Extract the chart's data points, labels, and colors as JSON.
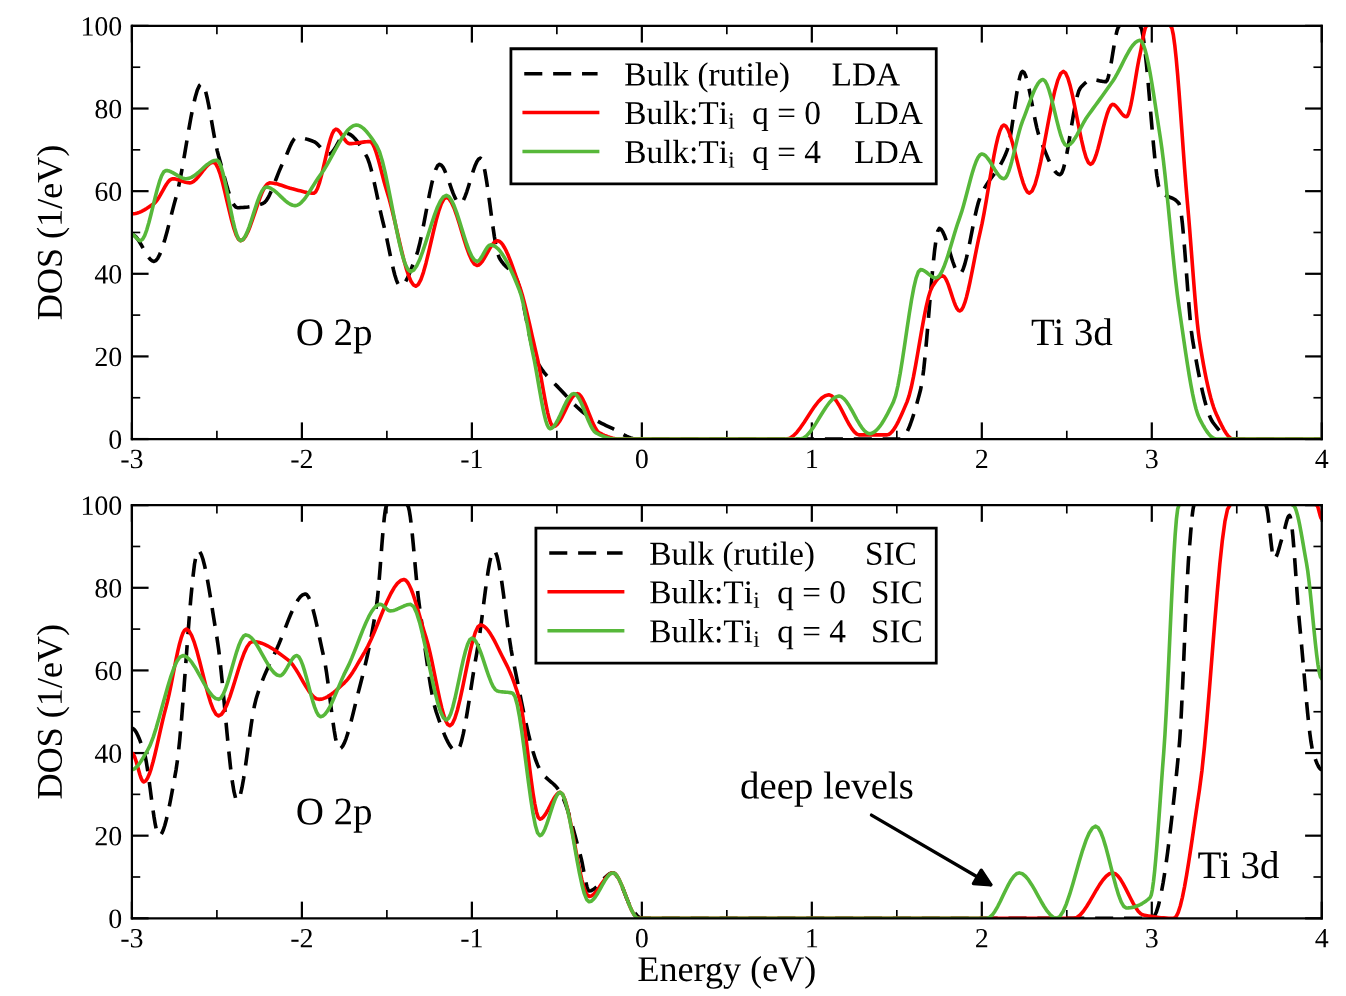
{
  "chart_data": [
    {
      "type": "line",
      "ylabel": "DOS (1/eV)",
      "xlim": [
        -3,
        4
      ],
      "ylim": [
        0,
        100
      ],
      "xticks": [
        -3,
        {
          "value": -2.5,
          "label": null
        },
        -2,
        {
          "value": -1.5,
          "label": null
        },
        -1,
        {
          "value": -0.5,
          "label": null
        },
        0,
        {
          "value": 0.5,
          "label": null
        },
        1,
        {
          "value": 1.5,
          "label": null
        },
        2,
        {
          "value": 2.5,
          "label": null
        },
        3,
        {
          "value": 3.5,
          "label": null
        },
        4
      ],
      "yticks": [
        0,
        {
          "value": 10,
          "label": null
        },
        20,
        {
          "value": 30,
          "label": null
        },
        40,
        {
          "value": 50,
          "label": null
        },
        60,
        {
          "value": 70,
          "label": null
        },
        80,
        {
          "value": 90,
          "label": null
        },
        100
      ],
      "grid": false,
      "legend": "top",
      "marker": "none",
      "annotations": [
        "O 2p",
        "Ti 3d"
      ],
      "series": [
        {
          "name": "Bulk (rutile)     LDA",
          "color": "#000000",
          "line_style": "dashed",
          "x": [
            -3,
            -2.87,
            -2.74,
            -2.59,
            -2.49,
            -2.38,
            -2.23,
            -2.11,
            -2.03,
            -1.93,
            -1.84,
            -1.74,
            -1.62,
            -1.52,
            -1.42,
            -1.33,
            -1.19,
            -1.07,
            -0.95,
            -0.84,
            -0.74,
            -0.62,
            -0.48,
            -0.33,
            -0.17,
            -0.03,
            1.52,
            1.64,
            1.75,
            1.87,
            1.99,
            2.15,
            2.24,
            2.34,
            2.46,
            2.58,
            2.65,
            2.73,
            2.81,
            2.87,
            2.93,
            3.05,
            3.16,
            3.24,
            3.36,
            3.48,
            4
          ],
          "values": [
            49.5,
            43,
            58.6,
            86,
            68.5,
            56,
            57,
            67,
            73,
            72,
            69,
            74,
            68.5,
            52,
            37,
            44,
            66.5,
            57,
            68,
            44,
            39,
            19,
            12,
            6,
            2.5,
            0,
            0,
            12,
            51,
            40,
            58.5,
            70,
            89,
            73,
            64,
            85,
            87,
            86.5,
            100,
            null,
            100,
            60,
            57,
            24,
            4,
            0,
            0
          ]
        },
        {
          "name": "Bulk:Ti$_{i}$  q = 0    LDA",
          "color": "#ff0000",
          "line_style": "solid",
          "x": [
            -3,
            -2.87,
            -2.76,
            -2.66,
            -2.52,
            -2.36,
            -2.19,
            -2.05,
            -1.93,
            -1.8,
            -1.72,
            -1.6,
            -1.5,
            -1.33,
            -1.15,
            -0.97,
            -0.85,
            -0.72,
            -0.62,
            -0.52,
            -0.38,
            -0.25,
            -0.13,
            0.85,
            1.1,
            1.28,
            1.44,
            1.56,
            1.71,
            1.77,
            1.87,
            1.99,
            2.13,
            2.28,
            2.48,
            2.64,
            2.77,
            2.85,
            2.93,
            2.97,
            3.04,
            3.11,
            3.21,
            3.28,
            3.38,
            3.48,
            4
          ],
          "values": [
            54.5,
            57,
            63,
            62,
            67,
            48,
            62,
            60.5,
            59.5,
            75,
            71.5,
            72,
            60,
            37,
            58.5,
            42,
            48,
            37,
            20.5,
            3,
            11,
            1.5,
            0,
            0,
            10.7,
            1,
            1,
            9,
            37,
            39.5,
            31,
            50,
            76,
            59.5,
            89,
            66.5,
            81,
            78,
            93,
            100,
            null,
            100,
            57,
            24,
            6,
            0,
            0
          ]
        },
        {
          "name": "Bulk:Ti$_{i}$  q = 4    LDA",
          "color": "#57b83a",
          "line_style": "solid",
          "x": [
            -3,
            -2.95,
            -2.8,
            -2.68,
            -2.5,
            -2.36,
            -2.21,
            -2.04,
            -1.89,
            -1.68,
            -1.56,
            -1.36,
            -1.15,
            -0.97,
            -0.89,
            -0.72,
            -0.64,
            -0.54,
            -0.4,
            -0.27,
            -0.15,
            0.93,
            1.16,
            1.34,
            1.48,
            1.64,
            1.73,
            1.87,
            2.0,
            2.13,
            2.24,
            2.36,
            2.5,
            2.62,
            2.77,
            2.93,
            3.05,
            3.16,
            3.28,
            3.38,
            4
          ],
          "values": [
            49.5,
            48,
            65,
            63,
            67.5,
            48,
            61,
            56.5,
            64,
            76,
            71,
            40.5,
            59,
            43,
            47,
            36,
            20.5,
            2.5,
            11,
            1.5,
            0,
            0,
            10.4,
            1.3,
            9,
            41,
            39,
            53.6,
            69,
            63,
            77,
            87,
            71,
            78,
            86.6,
            96.5,
            73,
            32,
            5,
            0,
            0
          ]
        }
      ]
    },
    {
      "type": "line",
      "xlabel": "Energy (eV)",
      "ylabel": "DOS (1/eV)",
      "xlim": [
        -3,
        4
      ],
      "ylim": [
        0,
        100
      ],
      "xticks": [
        -3,
        {
          "value": -2.5,
          "label": null
        },
        -2,
        {
          "value": -1.5,
          "label": null
        },
        -1,
        {
          "value": -0.5,
          "label": null
        },
        0,
        {
          "value": 0.5,
          "label": null
        },
        1,
        {
          "value": 1.5,
          "label": null
        },
        2,
        {
          "value": 2.5,
          "label": null
        },
        3,
        {
          "value": 3.5,
          "label": null
        },
        4
      ],
      "yticks": [
        0,
        {
          "value": 10,
          "label": null
        },
        20,
        {
          "value": 30,
          "label": null
        },
        40,
        {
          "value": 50,
          "label": null
        },
        60,
        {
          "value": 70,
          "label": null
        },
        80,
        {
          "value": 90,
          "label": null
        },
        100
      ],
      "grid": false,
      "legend": "top",
      "marker": "none",
      "annotations": [
        "O 2p",
        "Ti 3d",
        {
          "text": "deep levels",
          "x": 2.1,
          "y": 7
        }
      ],
      "series": [
        {
          "name": "Bulk (rutile)      SIC",
          "color": "#000000",
          "line_style": "dashed",
          "x": [
            -3,
            -2.93,
            -2.84,
            -2.74,
            -2.61,
            -2.5,
            -2.38,
            -2.27,
            -2.15,
            -1.98,
            -1.87,
            -1.78,
            -1.66,
            -1.56,
            -1.5,
            -1.44,
            -1.38,
            -1.31,
            -1.21,
            -1.09,
            -0.97,
            -0.87,
            -0.76,
            -0.6,
            -0.48,
            -0.36,
            -0.31,
            -0.17,
            -0.05,
            0.0,
            3.0,
            3.16,
            3.22,
            3.25,
            3.45,
            3.67,
            3.72,
            3.77,
            3.81,
            3.87,
            3.95,
            4.0
          ],
          "values": [
            46,
            40.5,
            20,
            36,
            89,
            68,
            28.5,
            53,
            65,
            78.5,
            63,
            41,
            56,
            76,
            100,
            null,
            100,
            76,
            50,
            40.5,
            64.5,
            89,
            63,
            36,
            30.5,
            15,
            6.6,
            11,
            1.7,
            0,
            0,
            41,
            89,
            100,
            null,
            100,
            87,
            92.5,
            97.5,
            71,
            40,
            36
          ]
        },
        {
          "name": "Bulk:Ti$_{i}$  q = 0   SIC",
          "color": "#ff0000",
          "line_style": "solid",
          "x": [
            -3,
            -2.93,
            -2.8,
            -2.68,
            -2.49,
            -2.29,
            -2.08,
            -1.9,
            -1.75,
            -1.63,
            -1.4,
            -1.27,
            -1.13,
            -0.95,
            -0.81,
            -0.72,
            -0.6,
            -0.48,
            -0.31,
            -0.17,
            -0.02,
            2.54,
            2.77,
            2.95,
            3.13,
            3.28,
            3.46,
            3.7,
            3.97,
            4.0
          ],
          "values": [
            40,
            33,
            51,
            70,
            49,
            67,
            62.5,
            53,
            57,
            64.5,
            82,
            68,
            46.6,
            71,
            62.5,
            53,
            24,
            30.5,
            5.3,
            11,
            0,
            0,
            11,
            0.8,
            0,
            31,
            100,
            null,
            100,
            96.7
          ]
        },
        {
          "name": "Bulk:Ti$_{i}$  q = 4   SIC",
          "color": "#57b83a",
          "line_style": "solid",
          "x": [
            -3,
            -2.91,
            -2.7,
            -2.49,
            -2.33,
            -2.13,
            -2.03,
            -1.89,
            -1.74,
            -1.54,
            -1.48,
            -1.36,
            -1.15,
            -1.0,
            -0.85,
            -0.76,
            -0.6,
            -0.48,
            -0.31,
            -0.17,
            -0.02,
            2.03,
            2.22,
            2.44,
            2.67,
            2.85,
            2.99,
            3.07,
            3.16,
            3.5,
            3.83,
            3.91,
            4.0
          ],
          "values": [
            36,
            40.5,
            63.6,
            53,
            68.6,
            58.7,
            63.6,
            48.8,
            60,
            76,
            74.4,
            76,
            48,
            67.8,
            55,
            54.5,
            20,
            30.5,
            4,
            11,
            0,
            0,
            11,
            0,
            22.3,
            2.5,
            5,
            40,
            100,
            null,
            100,
            86,
            58
          ]
        }
      ]
    }
  ]
}
